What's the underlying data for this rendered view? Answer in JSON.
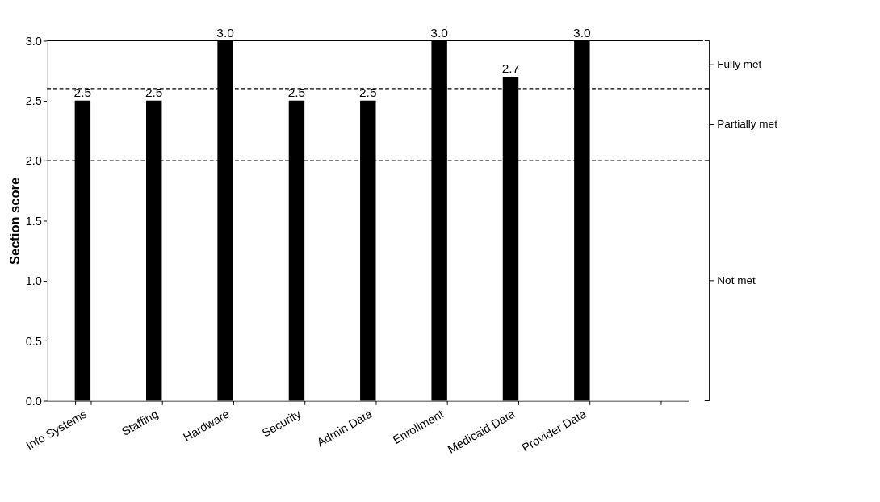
{
  "chart_data": {
    "type": "bar",
    "ylabel": "Section score",
    "categories": [
      "Info Systems",
      "Staffing",
      "Hardware",
      "Security",
      "Admin Data",
      "Enrollment",
      "Medicaid Data",
      "Provider Data",
      null
    ],
    "values": [
      2.5,
      2.5,
      3.0,
      2.5,
      2.5,
      3.0,
      2.7,
      3.0,
      null
    ],
    "color": "#000000",
    "value_labels": [
      "2.5",
      "2.5",
      "3.0",
      "2.5",
      "2.5",
      "3.0",
      "2.7",
      "3.0",
      null
    ],
    "grid": false,
    "ylim": [
      0,
      3
    ],
    "yticks": [
      {
        "value": 0,
        "label": "0.0"
      },
      {
        "value": 0.5,
        "label": "0.5"
      },
      {
        "value": 1,
        "label": "1.0"
      },
      {
        "value": 1.5,
        "label": "1.5"
      },
      {
        "value": 2,
        "label": "2.0"
      },
      {
        "value": 2.5,
        "label": "2.5"
      },
      {
        "value": 3,
        "label": "3.0"
      }
    ],
    "ref_lines": [
      {
        "axis": "y",
        "value": 2.0,
        "line_style": "dashed"
      },
      {
        "axis": "y",
        "value": 2.6,
        "line_style": "dashed"
      },
      {
        "axis": "y",
        "value": 3.0,
        "line_style": "solid"
      }
    ],
    "bands": [
      {
        "axis": "y",
        "from": 2.6,
        "to": 3.0,
        "label": "Fully met",
        "color": "#ffffff"
      },
      {
        "axis": "y",
        "from": 2.0,
        "to": 2.6,
        "label": "Partially met",
        "color": "#ffffff"
      },
      {
        "axis": "y",
        "from": 0.0,
        "to": 2.0,
        "label": "Not met",
        "color": "#ffffff"
      }
    ]
  }
}
